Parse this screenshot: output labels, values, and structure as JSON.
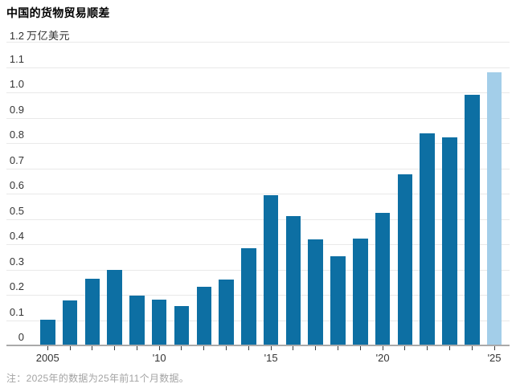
{
  "header": {
    "title": "中国的货物贸易顺差"
  },
  "footnote": {
    "prefix": "注：",
    "text": "2025年的数据为25年前11个月数据。"
  },
  "chart_data": {
    "type": "bar",
    "title": "中国的货物贸易顺差",
    "categories": [
      "2005",
      "2006",
      "2007",
      "2008",
      "2009",
      "2010",
      "2011",
      "2012",
      "2013",
      "2014",
      "2015",
      "2016",
      "2017",
      "2018",
      "2019",
      "2020",
      "2021",
      "2022",
      "2023",
      "2024",
      "2025"
    ],
    "values": [
      0.102,
      0.177,
      0.264,
      0.298,
      0.196,
      0.181,
      0.155,
      0.231,
      0.259,
      0.383,
      0.594,
      0.51,
      0.42,
      0.351,
      0.421,
      0.524,
      0.676,
      0.838,
      0.823,
      0.992,
      1.08
    ],
    "highlight_index": 20,
    "highlight_note": "2025 bar shown in light blue (partial-year data)",
    "y_axis": {
      "unit": "万亿美元",
      "top_tick": "1.2",
      "ticks": [
        "0",
        "0.1",
        "0.2",
        "0.3",
        "0.4",
        "0.5",
        "0.6",
        "0.7",
        "0.8",
        "0.9",
        "1.0",
        "1.1"
      ],
      "range": [
        0,
        1.2
      ],
      "grid": true
    },
    "x_axis": {
      "labels": [
        {
          "at": "2005",
          "text": "2005"
        },
        {
          "at": "2010",
          "text": "'10"
        },
        {
          "at": "2015",
          "text": "'15"
        },
        {
          "at": "2020",
          "text": "'20"
        },
        {
          "at": "2025",
          "text": "'25"
        }
      ]
    },
    "colors": {
      "bar": "#0d6fa3",
      "highlight_bar": "#a3cee9",
      "grid": "#e9e9e9",
      "axis": "#a9a9a9",
      "tick": "#3a3a3a",
      "label": "#333333",
      "note": "#a3a3a3",
      "title": "#000000"
    },
    "legend_position": "none"
  }
}
